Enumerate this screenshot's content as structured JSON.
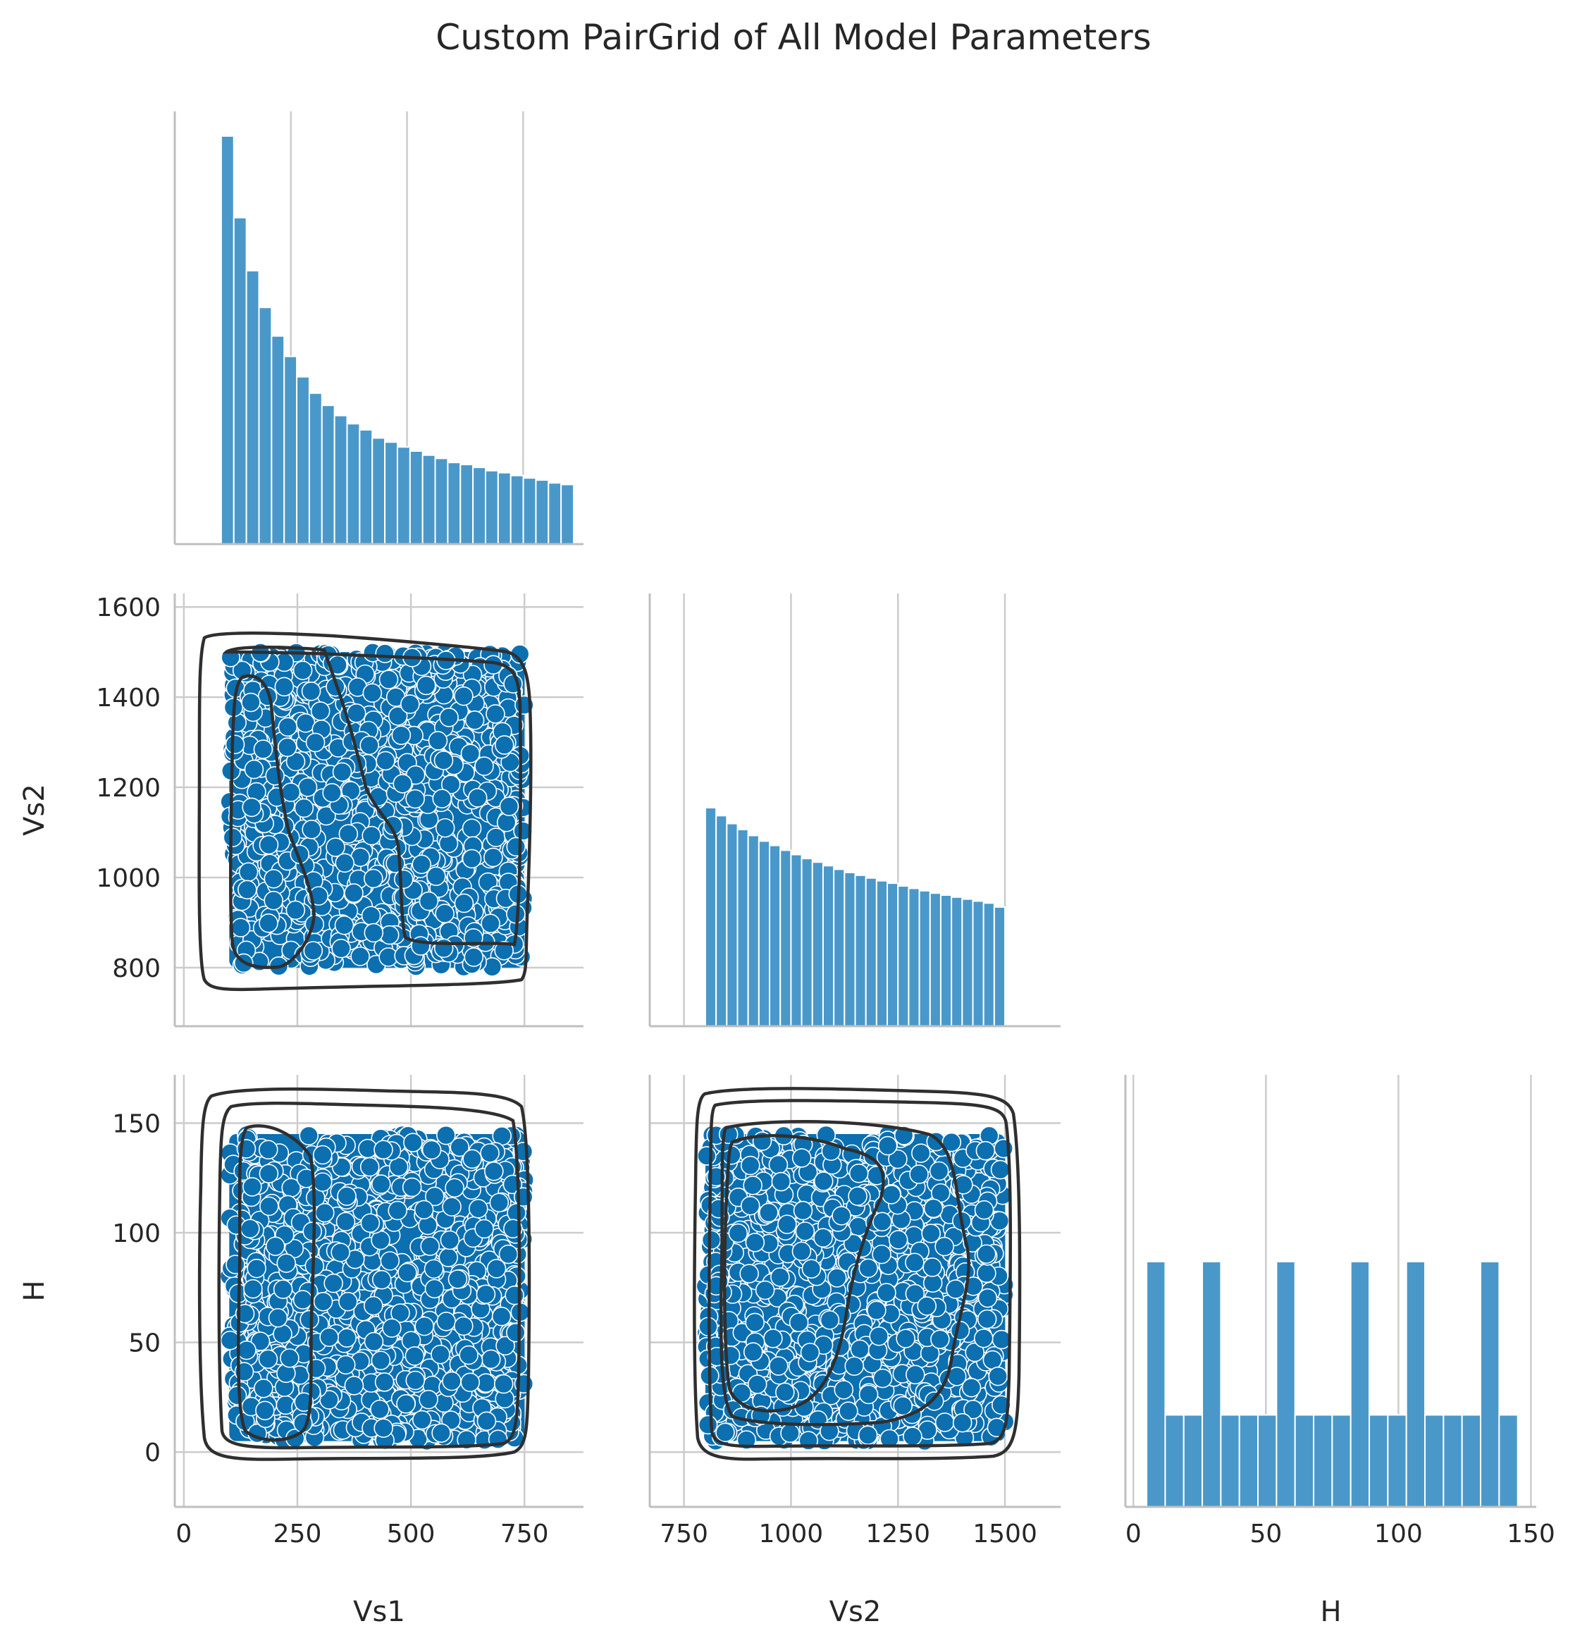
{
  "title": "Custom PairGrid of All Model Parameters",
  "colors": {
    "bar": "#4a98c9",
    "point": "#0b6fb0",
    "contour": "#2f2f2f",
    "grid": "#cccccc",
    "axis": "#bfbfbf"
  },
  "chart_data": [
    {
      "panel": "Vs1 histogram",
      "type": "bar",
      "xlabel": "",
      "ylabel": "",
      "xlim": [
        0,
        880
      ],
      "x_ticks": [
        0,
        250,
        500,
        750
      ],
      "bin_start": 100,
      "bin_width": 27.1,
      "counts": [
        1.0,
        0.8,
        0.67,
        0.58,
        0.51,
        0.46,
        0.41,
        0.37,
        0.34,
        0.315,
        0.295,
        0.28,
        0.26,
        0.25,
        0.238,
        0.228,
        0.218,
        0.21,
        0.2,
        0.195,
        0.188,
        0.18,
        0.175,
        0.168,
        0.162,
        0.157,
        0.15,
        0.146
      ],
      "y_scale": "relative (no y ticks shown)"
    },
    {
      "panel": "Vs1 vs Vs2",
      "type": "scatter",
      "xlabel": "",
      "ylabel": "Vs2",
      "xlim": [
        -20,
        880
      ],
      "ylim": [
        670,
        1630
      ],
      "y_ticks": [
        800,
        1000,
        1200,
        1400,
        1600
      ],
      "points_region": {
        "x": [
          100,
          750
        ],
        "y": [
          800,
          1500
        ]
      },
      "kde_contours": 3
    },
    {
      "panel": "Vs2 histogram",
      "type": "bar",
      "xlabel": "",
      "ylabel": "",
      "xlim": [
        670,
        1630
      ],
      "bin_start": 800,
      "bin_width": 25,
      "counts": [
        0.55,
        0.53,
        0.51,
        0.495,
        0.48,
        0.466,
        0.455,
        0.443,
        0.432,
        0.422,
        0.413,
        0.404,
        0.395,
        0.387,
        0.38,
        0.373,
        0.366,
        0.36,
        0.353,
        0.347,
        0.341,
        0.335,
        0.33,
        0.325,
        0.32,
        0.315,
        0.31,
        0.3
      ],
      "y_scale": "relative (no y ticks shown)"
    },
    {
      "panel": "Vs1 vs H",
      "type": "scatter",
      "xlabel": "Vs1",
      "ylabel": "H",
      "xlim": [
        -20,
        880
      ],
      "ylim": [
        -25,
        172
      ],
      "x_ticks": [
        0,
        250,
        500,
        750
      ],
      "y_ticks": [
        0,
        50,
        100,
        150
      ],
      "points_region": {
        "x": [
          100,
          750
        ],
        "y": [
          5,
          145
        ]
      },
      "kde_contours": 3
    },
    {
      "panel": "Vs2 vs H",
      "type": "scatter",
      "xlabel": "Vs2",
      "ylabel": "",
      "xlim": [
        670,
        1630
      ],
      "ylim": [
        -25,
        172
      ],
      "x_ticks": [
        750,
        1000,
        1250,
        1500
      ],
      "points_region": {
        "x": [
          800,
          1500
        ],
        "y": [
          5,
          145
        ]
      },
      "kde_contours": 4
    },
    {
      "panel": "H histogram",
      "type": "bar",
      "xlabel": "H",
      "ylabel": "",
      "xlim": [
        -3,
        152
      ],
      "x_ticks": [
        0,
        50,
        100,
        150
      ],
      "bin_start": 5,
      "bin_width": 7,
      "counts": [
        88,
        33,
        33,
        88,
        33,
        33,
        33,
        88,
        33,
        33,
        33,
        88,
        33,
        33,
        88,
        33,
        33,
        33,
        88,
        33
      ],
      "y_scale": "relative (no y ticks shown)"
    }
  ]
}
